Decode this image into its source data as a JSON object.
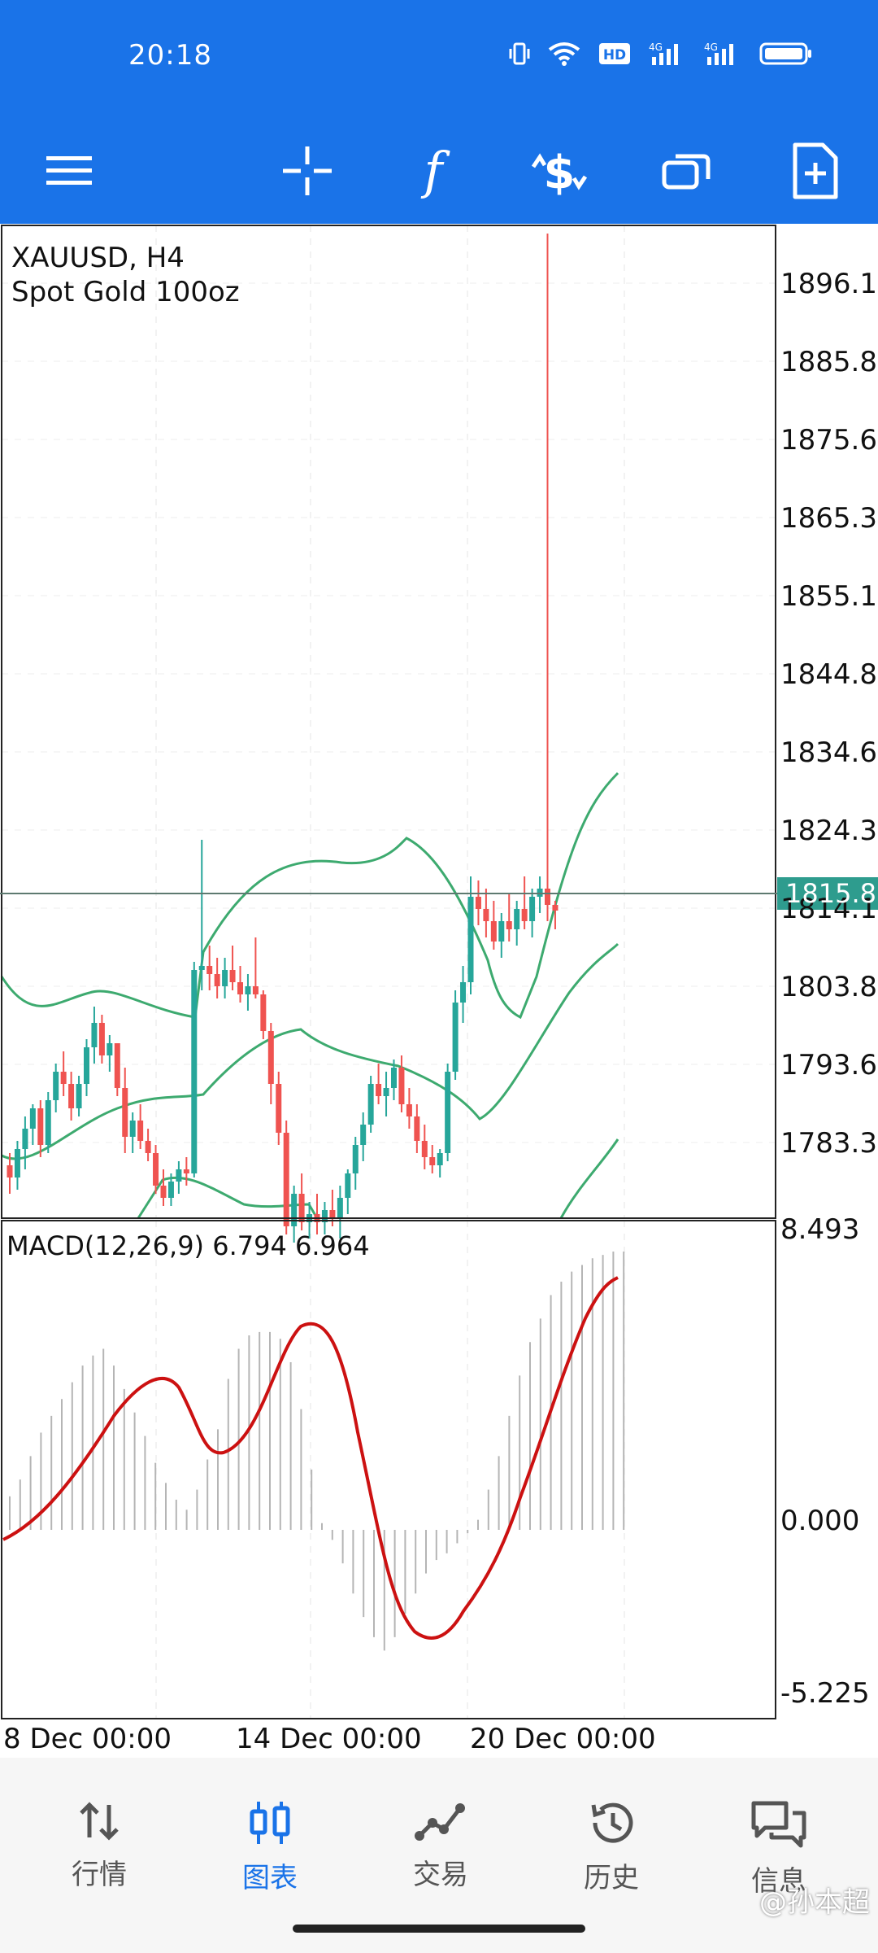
{
  "status": {
    "time": "20:18"
  },
  "toolbar": {
    "items": [
      "menu-icon",
      "crosshair-icon",
      "function-icon",
      "trade-icon",
      "windows-icon",
      "add-file-icon"
    ]
  },
  "chart": {
    "symbol": "XAUUSD, H4",
    "description": "Spot Gold 100oz",
    "current_price": "1815.8",
    "price_labels": [
      "1896.10",
      "1885.85",
      "1875.60",
      "1865.35",
      "1855.10",
      "1844.85",
      "1834.60",
      "1824.35",
      "1814.10",
      "1803.85",
      "1793.60",
      "1783.35"
    ],
    "macd_label": "MACD(12,26,9) 6.794 6.964",
    "macd_labels": [
      "8.493",
      "0.000",
      "-5.225"
    ],
    "date_labels": [
      "8 Dec 00:00",
      "14 Dec 00:00",
      "20 Dec 00:00"
    ],
    "colors": {
      "up": "#26a69a",
      "down": "#ef5350",
      "band": "#3daa6f",
      "macd_signal": "#cc1111",
      "current": "#2e9c8e"
    }
  },
  "chart_data": {
    "type": "candlestick",
    "title": "XAUUSD, H4",
    "ylim": [
      1778,
      1900
    ],
    "candles": [
      [
        1784.5,
        1786.0,
        1781.0,
        1783.0
      ],
      [
        1783.0,
        1787.5,
        1781.5,
        1786.5
      ],
      [
        1786.5,
        1790.5,
        1784.0,
        1789.0
      ],
      [
        1789.0,
        1792.0,
        1787.0,
        1791.5
      ],
      [
        1791.5,
        1792.5,
        1785.5,
        1787.0
      ],
      [
        1787.0,
        1793.5,
        1786.0,
        1792.5
      ],
      [
        1792.5,
        1797.0,
        1791.0,
        1796.0
      ],
      [
        1796.0,
        1798.5,
        1793.0,
        1794.5
      ],
      [
        1794.5,
        1796.0,
        1790.0,
        1791.5
      ],
      [
        1791.5,
        1795.5,
        1790.5,
        1794.5
      ],
      [
        1794.5,
        1800.0,
        1793.0,
        1799.0
      ],
      [
        1799.0,
        1804.0,
        1797.0,
        1802.0
      ],
      [
        1802.0,
        1803.0,
        1797.0,
        1798.0
      ],
      [
        1798.0,
        1800.5,
        1796.0,
        1799.5
      ],
      [
        1799.5,
        1799.5,
        1793.0,
        1794.0
      ],
      [
        1794.0,
        1796.5,
        1786.0,
        1788.0
      ],
      [
        1788.0,
        1791.0,
        1786.0,
        1790.0
      ],
      [
        1790.0,
        1792.0,
        1786.5,
        1787.5
      ],
      [
        1787.5,
        1789.0,
        1785.0,
        1786.0
      ],
      [
        1786.0,
        1787.0,
        1781.0,
        1782.0
      ],
      [
        1782.0,
        1784.0,
        1779.5,
        1780.5
      ],
      [
        1780.5,
        1783.5,
        1779.5,
        1782.5
      ],
      [
        1782.5,
        1785.0,
        1781.0,
        1784.0
      ],
      [
        1784.0,
        1785.5,
        1782.0,
        1783.5
      ],
      [
        1783.5,
        1809.5,
        1783.0,
        1808.5
      ],
      [
        1808.5,
        1824.5,
        1806.0,
        1809.0
      ],
      [
        1809.0,
        1811.5,
        1806.0,
        1808.0
      ],
      [
        1808.0,
        1810.0,
        1805.0,
        1806.5
      ],
      [
        1806.5,
        1810.0,
        1805.0,
        1808.5
      ],
      [
        1808.5,
        1811.5,
        1806.0,
        1807.0
      ],
      [
        1807.0,
        1809.0,
        1804.5,
        1805.5
      ],
      [
        1805.5,
        1808.0,
        1803.5,
        1806.5
      ],
      [
        1806.5,
        1812.5,
        1805.0,
        1805.5
      ],
      [
        1805.5,
        1806.0,
        1800.0,
        1801.0
      ],
      [
        1801.0,
        1802.0,
        1792.0,
        1794.5
      ],
      [
        1794.5,
        1796.0,
        1787.0,
        1788.5
      ],
      [
        1788.5,
        1790.0,
        1776.0,
        1777.0
      ],
      [
        1777.0,
        1782.0,
        1775.0,
        1781.0
      ],
      [
        1781.0,
        1783.5,
        1776.5,
        1777.5
      ],
      [
        1777.5,
        1780.0,
        1775.5,
        1778.5
      ],
      [
        1778.5,
        1781.0,
        1776.0,
        1777.5
      ],
      [
        1777.5,
        1780.0,
        1776.0,
        1779.0
      ],
      [
        1779.0,
        1781.5,
        1777.0,
        1778.0
      ],
      [
        1778.0,
        1782.0,
        1775.5,
        1780.5
      ],
      [
        1780.5,
        1784.0,
        1778.5,
        1783.5
      ],
      [
        1783.5,
        1788.0,
        1781.5,
        1787.0
      ],
      [
        1787.0,
        1791.0,
        1785.0,
        1789.5
      ],
      [
        1789.5,
        1795.5,
        1788.5,
        1794.5
      ],
      [
        1794.5,
        1797.0,
        1792.0,
        1793.0
      ],
      [
        1793.0,
        1796.0,
        1790.5,
        1794.0
      ],
      [
        1794.0,
        1797.5,
        1792.5,
        1796.5
      ],
      [
        1796.5,
        1798.0,
        1791.0,
        1792.0
      ],
      [
        1792.0,
        1794.0,
        1789.0,
        1790.5
      ],
      [
        1790.5,
        1792.0,
        1786.0,
        1787.5
      ],
      [
        1787.5,
        1789.5,
        1784.0,
        1785.5
      ],
      [
        1785.5,
        1787.0,
        1783.5,
        1784.5
      ],
      [
        1784.5,
        1786.5,
        1783.0,
        1786.0
      ],
      [
        1786.0,
        1797.0,
        1785.0,
        1796.0
      ],
      [
        1796.0,
        1806.0,
        1795.0,
        1804.5
      ],
      [
        1804.5,
        1809.0,
        1802.0,
        1807.0
      ],
      [
        1807.0,
        1820.0,
        1805.5,
        1817.5
      ],
      [
        1817.5,
        1819.5,
        1814.0,
        1816.0
      ],
      [
        1816.0,
        1818.5,
        1812.5,
        1814.5
      ],
      [
        1814.5,
        1817.0,
        1811.0,
        1812.0
      ],
      [
        1812.0,
        1815.5,
        1810.0,
        1814.5
      ],
      [
        1814.5,
        1818.0,
        1812.0,
        1813.5
      ],
      [
        1813.5,
        1817.0,
        1811.5,
        1816.0
      ],
      [
        1816.0,
        1820.0,
        1813.5,
        1814.5
      ],
      [
        1814.5,
        1818.5,
        1812.5,
        1817.5
      ],
      [
        1817.5,
        1820.0,
        1815.5,
        1818.5
      ],
      [
        1818.5,
        1899.0,
        1814.5,
        1816.5
      ],
      [
        1816.5,
        1817.0,
        1813.5,
        1815.8
      ]
    ]
  }
}
